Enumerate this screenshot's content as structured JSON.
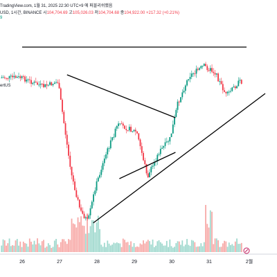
{
  "header": {
    "line1_prefix": "TradingView.com, 1월 31, 2025 22:30 UTC+9 에 퍼블리쉬했음",
    "line2_symbol": "USD, 1시간, BINANCE",
    "o_label": "시",
    "o_value": "104,704.69",
    "h_label": "고",
    "h_value": "105,026.03",
    "l_label": "저",
    "l_value": "104,704.68",
    "c_label": "종",
    "c_value": "104,922.00",
    "change": "+217.32 (+0.21%)",
    "line3": "9"
  },
  "legend_stub": "ertUS",
  "colors": {
    "up": "#089981",
    "down": "#f23645",
    "vol_up": "#9fd9ce",
    "vol_down": "#f7a9a7",
    "border": "#d1d4dc",
    "line": "#000000"
  },
  "chart_data": {
    "type": "candlestick",
    "timeframe": "1h",
    "x_ticks": [
      "26",
      "27",
      "28",
      "29",
      "30",
      "31",
      "2월"
    ],
    "daily_path": [
      {
        "day": 26,
        "price": 112
      },
      {
        "day": 26.6,
        "price": 125
      },
      {
        "day": 27,
        "price": 118
      },
      {
        "day": 27.35,
        "price": 250
      },
      {
        "day": 27.6,
        "price": 305
      },
      {
        "day": 27.8,
        "price": 320
      },
      {
        "day": 28,
        "price": 270
      },
      {
        "day": 28.3,
        "price": 220
      },
      {
        "day": 28.6,
        "price": 180
      },
      {
        "day": 29.1,
        "price": 190
      },
      {
        "day": 29.4,
        "price": 255
      },
      {
        "day": 29.7,
        "price": 220
      },
      {
        "day": 30,
        "price": 200
      },
      {
        "day": 30.2,
        "price": 150
      },
      {
        "day": 30.5,
        "price": 110
      },
      {
        "day": 30.9,
        "price": 95
      },
      {
        "day": 31.2,
        "price": 105
      },
      {
        "day": 31.5,
        "price": 138
      },
      {
        "day": 31.85,
        "price": 118
      }
    ],
    "trendlines": [
      {
        "name": "top-horizontal",
        "from": [
          26,
          68
        ],
        "to": [
          32,
          68
        ]
      },
      {
        "name": "descending",
        "from": [
          27.2,
          108
        ],
        "to": [
          30.1,
          170
        ]
      },
      {
        "name": "ascending-support",
        "from": [
          27.9,
          322
        ],
        "to": [
          32.5,
          135
        ]
      },
      {
        "name": "lower-ascending",
        "from": [
          28.6,
          258
        ],
        "to": [
          30.1,
          220
        ]
      }
    ]
  }
}
